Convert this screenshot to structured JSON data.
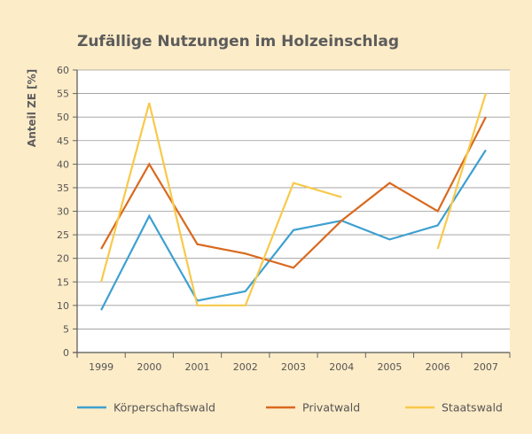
{
  "chart_data": {
    "type": "line",
    "title": "Zufällige Nutzungen im Holzeinschlag",
    "ylabel": "Anteil ZE [%]",
    "xlabel": "",
    "x": [
      "1999",
      "2000",
      "2001",
      "2002",
      "2003",
      "2004",
      "2005",
      "2006",
      "2007"
    ],
    "ylim": [
      0,
      60
    ],
    "yticks": [
      "0",
      "5",
      "10",
      "15",
      "20",
      "25",
      "30",
      "35",
      "40",
      "45",
      "50",
      "55",
      "60"
    ],
    "grid": true,
    "legend": "bottom",
    "series": [
      {
        "name": "Körperschaftswald",
        "color": "#3ea0d0",
        "values": [
          9,
          29,
          11,
          13,
          26,
          28,
          24,
          27,
          43
        ]
      },
      {
        "name": "Privatwald",
        "color": "#d9691f",
        "values": [
          22,
          40,
          23,
          21,
          18,
          28,
          36,
          30,
          50
        ]
      },
      {
        "name": "Staatswald",
        "color": "#f8c94a",
        "segments": [
          {
            "x": [
              "1999",
              "2000",
              "2001",
              "2002",
              "2003",
              "2004"
            ],
            "values": [
              15,
              53,
              10,
              10,
              36,
              33
            ]
          },
          {
            "x": [
              "2006",
              "2007"
            ],
            "values": [
              22,
              55
            ]
          }
        ]
      }
    ]
  }
}
